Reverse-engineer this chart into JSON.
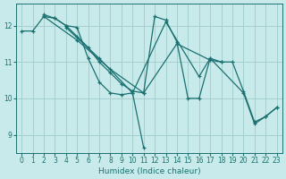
{
  "xlabel": "Humidex (Indice chaleur)",
  "bg_color": "#c8eaea",
  "grid_color": "#a0cccc",
  "line_color": "#1a7070",
  "xlim": [
    -0.5,
    23.5
  ],
  "ylim": [
    8.5,
    12.6
  ],
  "xticks": [
    0,
    1,
    2,
    3,
    4,
    5,
    6,
    7,
    8,
    9,
    10,
    11,
    12,
    13,
    14,
    15,
    16,
    17,
    18,
    19,
    20,
    21,
    22,
    23
  ],
  "yticks": [
    9,
    10,
    11,
    12
  ],
  "series": [
    [
      [
        0,
        11.85
      ],
      [
        1,
        11.85
      ],
      [
        2,
        12.25
      ],
      [
        3,
        12.2
      ],
      [
        4,
        12.0
      ],
      [
        5,
        11.95
      ],
      [
        6,
        11.1
      ],
      [
        7,
        10.45
      ],
      [
        8,
        10.15
      ],
      [
        9,
        10.1
      ],
      [
        10,
        10.15
      ],
      [
        11,
        8.65
      ]
    ],
    [
      [
        2,
        12.3
      ],
      [
        3,
        12.2
      ],
      [
        4,
        12.0
      ],
      [
        5,
        11.7
      ],
      [
        6,
        11.4
      ],
      [
        7,
        11.0
      ],
      [
        8,
        10.7
      ],
      [
        9,
        10.4
      ],
      [
        10,
        10.2
      ],
      [
        11,
        10.15
      ],
      [
        12,
        12.25
      ],
      [
        13,
        12.15
      ],
      [
        14,
        11.55
      ],
      [
        15,
        10.0
      ],
      [
        16,
        10.0
      ],
      [
        17,
        11.1
      ],
      [
        18,
        11.0
      ]
    ],
    [
      [
        2,
        12.25
      ],
      [
        5,
        11.6
      ],
      [
        8,
        10.8
      ],
      [
        11,
        10.15
      ],
      [
        14,
        11.5
      ],
      [
        17,
        11.05
      ],
      [
        18,
        11.0
      ],
      [
        19,
        11.0
      ],
      [
        20,
        10.2
      ],
      [
        21,
        9.35
      ],
      [
        22,
        9.5
      ],
      [
        23,
        9.75
      ]
    ],
    [
      [
        4,
        11.95
      ],
      [
        7,
        11.1
      ],
      [
        10,
        10.15
      ],
      [
        13,
        12.1
      ],
      [
        16,
        10.6
      ],
      [
        17,
        11.1
      ],
      [
        20,
        10.15
      ],
      [
        21,
        9.3
      ],
      [
        22,
        9.5
      ],
      [
        23,
        9.75
      ]
    ]
  ]
}
